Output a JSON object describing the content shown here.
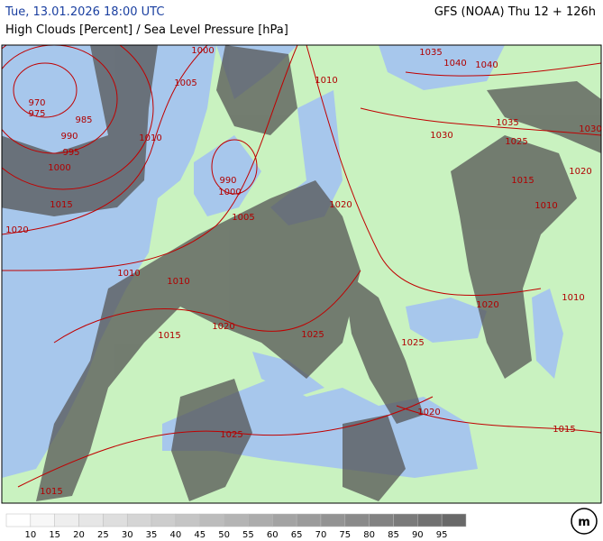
{
  "header": {
    "left": "Tue, 13.01.2026 18:00 UTC",
    "right": "GFS (NOAA) Thu 12 + 126h",
    "subtitle": "High Clouds [Percent] / Sea Level Pressure [hPa]"
  },
  "isobar_labels": [
    1000,
    1005,
    970,
    975,
    985,
    990,
    1010,
    995,
    1000,
    990,
    1000,
    1015,
    1020,
    1005,
    1010,
    1010,
    1020,
    1015,
    1025,
    1025,
    1020,
    1010,
    1020,
    1015,
    1025,
    1015,
    1035,
    1040,
    1040,
    1010,
    1035,
    1030,
    1025,
    1030,
    1020,
    1015,
    1010,
    1020
  ],
  "legend": {
    "labels": [
      10,
      15,
      20,
      25,
      30,
      35,
      40,
      45,
      50,
      55,
      60,
      65,
      70,
      75,
      80,
      85,
      90,
      95
    ]
  }
}
